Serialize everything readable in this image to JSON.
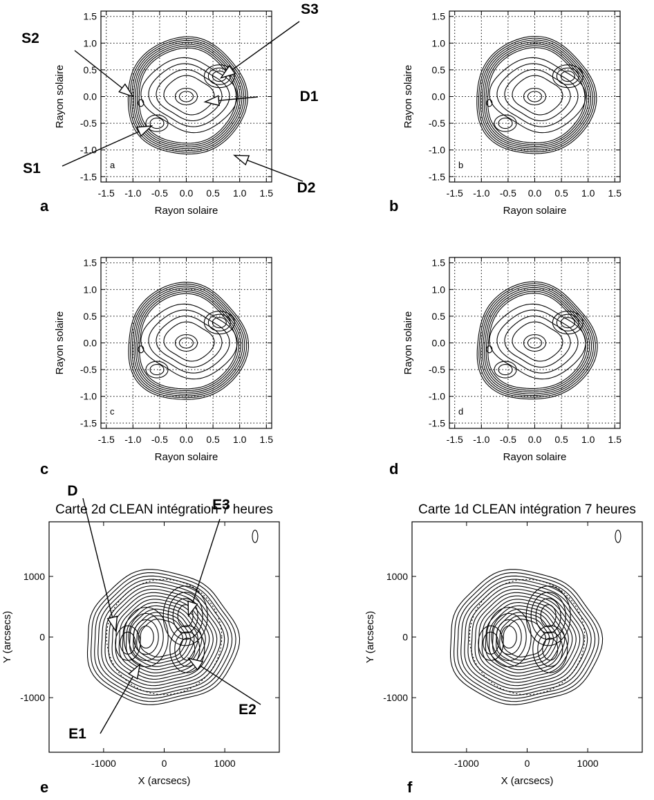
{
  "chart_data": [
    {
      "panel": "a",
      "type": "contour",
      "inner_label": "a",
      "xlabel": "Rayon solaire",
      "ylabel": "Rayon solaire",
      "xlim": [
        -1.6,
        1.6
      ],
      "ylim": [
        -1.6,
        1.6
      ],
      "xticks": [
        "-1.5",
        "-1.0",
        "-0.5",
        "0.0",
        "0.5",
        "1.0",
        "1.5"
      ],
      "yticks": [
        "-1.5",
        "-1.0",
        "-0.5",
        "0.0",
        "0.5",
        "1.0",
        "1.5"
      ],
      "grid": true,
      "annotations": [
        {
          "label": "S2",
          "target": [
            -1.0,
            0.0
          ]
        },
        {
          "label": "S3",
          "target": [
            0.65,
            0.35
          ]
        },
        {
          "label": "D1",
          "target": [
            0.35,
            -0.1
          ]
        },
        {
          "label": "S1",
          "target": [
            -0.65,
            -0.55
          ]
        },
        {
          "label": "D2",
          "target": [
            0.9,
            -1.1
          ]
        }
      ]
    },
    {
      "panel": "b",
      "type": "contour",
      "inner_label": "b",
      "xlabel": "Rayon solaire",
      "ylabel": "Rayon solaire",
      "xlim": [
        -1.6,
        1.6
      ],
      "ylim": [
        -1.6,
        1.6
      ],
      "xticks": [
        "-1.5",
        "-1.0",
        "-0.5",
        "0.0",
        "0.5",
        "1.0",
        "1.5"
      ],
      "yticks": [
        "-1.5",
        "-1.0",
        "-0.5",
        "0.0",
        "0.5",
        "1.0",
        "1.5"
      ],
      "grid": true
    },
    {
      "panel": "c",
      "type": "contour",
      "inner_label": "c",
      "xlabel": "Rayon solaire",
      "ylabel": "Rayon solaire",
      "xlim": [
        -1.6,
        1.6
      ],
      "ylim": [
        -1.6,
        1.6
      ],
      "xticks": [
        "-1.5",
        "-1.0",
        "-0.5",
        "0.0",
        "0.5",
        "1.0",
        "1.5"
      ],
      "yticks": [
        "-1.5",
        "-1.0",
        "-0.5",
        "0.0",
        "0.5",
        "1.0",
        "1.5"
      ],
      "grid": true
    },
    {
      "panel": "d",
      "type": "contour",
      "inner_label": "d",
      "xlabel": "Rayon solaire",
      "ylabel": "Rayon solaire",
      "xlim": [
        -1.6,
        1.6
      ],
      "ylim": [
        -1.6,
        1.6
      ],
      "xticks": [
        "-1.5",
        "-1.0",
        "-0.5",
        "0.0",
        "0.5",
        "1.0",
        "1.5"
      ],
      "yticks": [
        "-1.5",
        "-1.0",
        "-0.5",
        "0.0",
        "0.5",
        "1.0",
        "1.5"
      ],
      "grid": true
    },
    {
      "panel": "e",
      "type": "contour",
      "title": "Carte 2d CLEAN intégration 7 heures",
      "xlabel": "X (arcsecs)",
      "ylabel": "Y (arcsecs)",
      "xlim": [
        -1900,
        1900
      ],
      "ylim": [
        -1900,
        1900
      ],
      "xticks": [
        "-1000",
        "0",
        "1000"
      ],
      "yticks": [
        "-1000",
        "0",
        "1000"
      ],
      "grid": false,
      "annotations": [
        {
          "label": "D",
          "target": [
            -800,
            100
          ]
        },
        {
          "label": "E3",
          "target": [
            400,
            350
          ]
        },
        {
          "label": "E1",
          "target": [
            -400,
            -450
          ]
        },
        {
          "label": "E2",
          "target": [
            400,
            -350
          ]
        }
      ]
    },
    {
      "panel": "f",
      "type": "contour",
      "title": "Carte 1d CLEAN intégration 7 heures",
      "xlabel": "X (arcsecs)",
      "ylabel": "Y (arcsecs)",
      "xlim": [
        -1900,
        1900
      ],
      "ylim": [
        -1900,
        1900
      ],
      "xticks": [
        "-1000",
        "0",
        "1000"
      ],
      "yticks": [
        "-1000",
        "0",
        "1000"
      ],
      "grid": false
    }
  ]
}
